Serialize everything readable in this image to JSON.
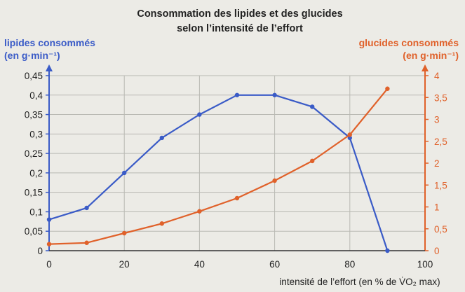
{
  "colors": {
    "left_axis": "#3a5bc7",
    "right_axis": "#e0612a",
    "grid": "#b9b9b3",
    "background": "#ecebe6",
    "text": "#222222"
  },
  "chart_data": {
    "type": "line",
    "title_lines": [
      "Consommation des lipides et des glucides",
      "selon l’intensité de l’effort"
    ],
    "xlabel": "intensité de l’effort (en % de V̇O₂ max)",
    "xlim": [
      0,
      100
    ],
    "x_ticks": [
      0,
      20,
      40,
      60,
      80,
      100
    ],
    "left_axis": {
      "label_lines": [
        "lipides consommés",
        "(en g·min⁻¹)"
      ],
      "ylim": [
        0,
        0.45
      ],
      "ticks": [
        "0",
        "0,05",
        "0,1",
        "0,15",
        "0,2",
        "0,25",
        "0,3",
        "0,35",
        "0,4",
        "0,45"
      ],
      "tick_values": [
        0,
        0.05,
        0.1,
        0.15,
        0.2,
        0.25,
        0.3,
        0.35,
        0.4,
        0.45
      ]
    },
    "right_axis": {
      "label_lines": [
        "glucides consommés",
        "(en g·min⁻¹)"
      ],
      "ylim": [
        0,
        4
      ],
      "ticks": [
        "0",
        "0,5",
        "1",
        "1,5",
        "2",
        "2,5",
        "3",
        "3,5",
        "4"
      ],
      "tick_values": [
        0,
        0.5,
        1,
        1.5,
        2,
        2.5,
        3,
        3.5,
        4
      ]
    },
    "grid": true,
    "series": [
      {
        "axis": "left",
        "color": "#3a5bc7",
        "x": [
          0,
          10,
          20,
          30,
          40,
          50,
          60,
          70,
          80,
          90
        ],
        "y": [
          0.08,
          0.11,
          0.2,
          0.29,
          0.35,
          0.4,
          0.4,
          0.37,
          0.29,
          0.0
        ]
      },
      {
        "axis": "right",
        "color": "#e0612a",
        "x": [
          0,
          10,
          20,
          30,
          40,
          50,
          60,
          70,
          80,
          90
        ],
        "y": [
          0.15,
          0.18,
          0.4,
          0.62,
          0.9,
          1.2,
          1.6,
          2.05,
          2.65,
          3.7
        ]
      }
    ]
  }
}
